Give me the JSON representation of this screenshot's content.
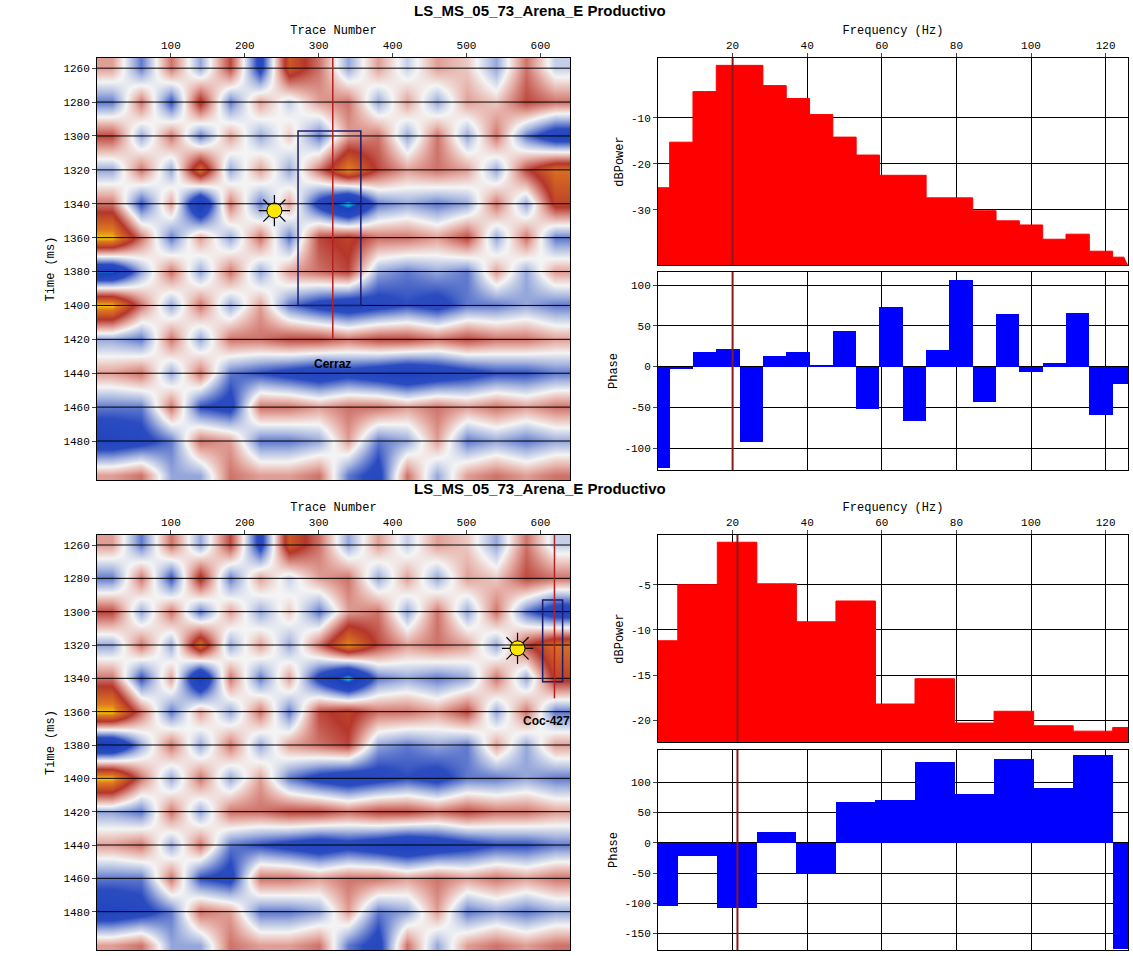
{
  "chart_data": {
    "type": "composite",
    "section_amplitude": {
      "x": [
        20,
        60,
        100,
        140,
        180,
        220,
        260,
        300,
        340,
        380,
        420,
        460,
        500,
        540,
        580,
        620
      ],
      "y": [
        1260,
        1280,
        1300,
        1320,
        1340,
        1360,
        1380,
        1400,
        1420,
        1440,
        1460,
        1480,
        1500
      ],
      "z": [
        [
          0.2,
          -0.3,
          0.3,
          -0.2,
          0.4,
          -0.5,
          0.6,
          0.3,
          -0.2,
          0.2,
          -0.1,
          0.2,
          0.1,
          -0.2,
          0.3,
          -0.1
        ],
        [
          -0.3,
          0.3,
          -0.4,
          0.5,
          -0.3,
          0.2,
          -0.1,
          0.2,
          0.3,
          -0.2,
          0.2,
          -0.2,
          0.2,
          0.1,
          0.4,
          0.3
        ],
        [
          0.4,
          -0.2,
          0.3,
          -0.3,
          0.2,
          -0.2,
          0.1,
          -0.3,
          0.2,
          0.3,
          -0.2,
          0.3,
          -0.2,
          0.3,
          -0.3,
          -0.6
        ],
        [
          -0.2,
          0.3,
          -0.2,
          0.7,
          -0.2,
          0.2,
          -0.2,
          0.3,
          0.8,
          0.4,
          0.2,
          0.3,
          0.2,
          -0.2,
          0.4,
          0.7
        ],
        [
          0.3,
          -0.4,
          0.2,
          -0.8,
          0.3,
          -0.3,
          0.2,
          -0.5,
          -0.95,
          -0.3,
          -0.2,
          -0.3,
          -0.2,
          0.3,
          -0.2,
          0.5
        ],
        [
          0.9,
          0.3,
          -0.3,
          0.2,
          -0.2,
          0.3,
          -0.3,
          0.4,
          0.5,
          0.3,
          0.3,
          0.2,
          0.4,
          -0.2,
          0.3,
          -0.3
        ],
        [
          -0.8,
          -0.2,
          0.3,
          -0.2,
          0.3,
          -0.2,
          0.2,
          0.3,
          0.4,
          -0.2,
          -0.3,
          -0.2,
          -0.3,
          0.2,
          -0.2,
          0.2
        ],
        [
          0.9,
          0.3,
          -0.2,
          0.3,
          -0.2,
          0.2,
          -0.3,
          -0.5,
          -0.6,
          -0.5,
          -0.4,
          -0.5,
          -0.3,
          -0.3,
          -0.2,
          -0.3
        ],
        [
          -0.2,
          -0.3,
          0.3,
          -0.2,
          0.3,
          0.3,
          0.4,
          0.4,
          0.3,
          0.4,
          0.4,
          0.3,
          0.4,
          0.3,
          0.3,
          0.2
        ],
        [
          0.2,
          0.3,
          -0.2,
          0.3,
          -0.3,
          -0.4,
          -0.5,
          -0.6,
          -0.5,
          -0.6,
          -0.7,
          -0.6,
          -0.5,
          -0.4,
          -0.4,
          -0.3
        ],
        [
          -0.3,
          -0.3,
          0.3,
          -0.4,
          -0.5,
          0.3,
          0.3,
          0.2,
          0.3,
          0.3,
          0.2,
          0.3,
          0.2,
          0.3,
          0.2,
          0.3
        ],
        [
          -0.6,
          -0.5,
          -0.3,
          0.3,
          0.2,
          -0.3,
          -0.3,
          -0.2,
          0.2,
          -0.3,
          -0.2,
          0.2,
          -0.3,
          -0.2,
          -0.3,
          -0.2
        ],
        [
          0.2,
          0.3,
          -0.2,
          -0.2,
          0.3,
          0.2,
          0.2,
          0.3,
          -0.3,
          -0.5,
          0.3,
          -0.2,
          0.2,
          0.3,
          0.2,
          0.3
        ]
      ],
      "zlim": [
        -1,
        1
      ]
    },
    "panels": [
      {
        "title": "LS_MS_05_73_Arena_E Productivo",
        "section": {
          "type": "heatmap",
          "x_label": "Trace Number",
          "y_label": "Time (ms)",
          "xlim": [
            0,
            640
          ],
          "ylim": [
            1503,
            1254
          ],
          "xticks": [
            100,
            200,
            300,
            400,
            500,
            600
          ],
          "yticks": [
            1260,
            1280,
            1300,
            1320,
            1340,
            1360,
            1380,
            1400,
            1420,
            1440,
            1460,
            1480
          ],
          "grid": true,
          "well": {
            "label": "Cerraz",
            "trace": 319,
            "time": [
              1254,
              1420
            ],
            "label_trace": 319,
            "label_time": 1429,
            "color": "#b22222"
          },
          "box": {
            "trace": [
              272,
              357
            ],
            "time": [
              1297,
              1400
            ],
            "color": "#1c1c6b"
          },
          "sun": {
            "trace": 240,
            "time": 1344,
            "marker": "sun",
            "color": "#ffe600"
          }
        },
        "power": {
          "type": "bar",
          "x_label": "Frequency (Hz)",
          "y_label": "dBPower",
          "x": [
            0,
            6.25,
            12.5,
            18.75,
            25,
            31.25,
            37.5,
            43.75,
            50,
            56.25,
            62.5,
            68.75,
            75,
            81.25,
            87.5,
            93.75,
            100,
            106.25,
            112.5,
            118.75,
            125
          ],
          "values": [
            -25.2,
            -15.3,
            -4.3,
            1.4,
            1.4,
            -3,
            -5.8,
            -9.3,
            -14.2,
            -18.1,
            -22.5,
            -22.5,
            -27.4,
            -27.4,
            -30.2,
            -32.4,
            -33.3,
            -36.4,
            -35.3,
            -39,
            -40.3
          ],
          "color": "#ff0000",
          "xlim": [
            0,
            126
          ],
          "ylim": [
            -42,
            3
          ],
          "xticks": [
            20,
            40,
            60,
            80,
            100,
            120
          ],
          "yticks": [
            -10,
            -20,
            -30
          ],
          "grid": true,
          "cursor": 20,
          "cursor_color": "#8b1a1a"
        },
        "phase": {
          "type": "bar",
          "y_label": "Phase",
          "x": [
            0,
            6.25,
            12.5,
            18.75,
            25,
            31.25,
            37.5,
            43.75,
            50,
            56.25,
            62.5,
            68.75,
            75,
            81.25,
            87.5,
            93.75,
            100,
            106.25,
            112.5,
            118.75,
            125
          ],
          "values": [
            -125,
            -3,
            18,
            21,
            -93,
            13,
            18,
            2,
            43,
            -52,
            73,
            -67,
            20,
            106,
            -43,
            64,
            -7,
            4,
            66,
            -60,
            -22
          ],
          "color": "#0000ff",
          "xlim": [
            0,
            126
          ],
          "ylim": [
            -127,
            116
          ],
          "xticks": [
            20,
            40,
            60,
            80,
            100,
            120
          ],
          "yticks": [
            -100,
            -50,
            0,
            50,
            100
          ],
          "grid": true,
          "tick_labels": "y",
          "cursor": 20,
          "cursor_color": "#8b1a1a"
        }
      },
      {
        "title": "LS_MS_05_73_Arena_E Productivo",
        "section": {
          "type": "heatmap",
          "x_label": "Trace Number",
          "y_label": "Time (ms)",
          "xlim": [
            0,
            640
          ],
          "ylim": [
            1503,
            1254
          ],
          "xticks": [
            100,
            200,
            300,
            400,
            500,
            600
          ],
          "yticks": [
            1260,
            1280,
            1300,
            1320,
            1340,
            1360,
            1380,
            1400,
            1420,
            1440,
            1460,
            1480
          ],
          "grid": true,
          "well": {
            "label": "Coc-427",
            "trace": 619,
            "time": [
              1254,
              1352
            ],
            "label_trace": 608,
            "label_time": 1360,
            "color": "#b22222"
          },
          "box": {
            "trace": [
              603,
              630
            ],
            "time": [
              1293,
              1342
            ],
            "color": "#1c1c6b"
          },
          "sun": {
            "trace": 569,
            "time": 1322,
            "marker": "sun",
            "color": "#ffe600"
          }
        },
        "power": {
          "type": "bar",
          "x_label": "Frequency (Hz)",
          "y_label": "dBPower",
          "x": [
            0,
            10.6,
            21.2,
            31.8,
            42.4,
            53,
            63.6,
            74.2,
            84.8,
            95.4,
            106,
            116.6,
            127.2
          ],
          "values": [
            -11.2,
            -5,
            -0.3,
            -4.9,
            -9.1,
            -6.8,
            -18.2,
            -15.4,
            -20.3,
            -19,
            -20.6,
            -21.2,
            -20.8
          ],
          "color": "#ff0000",
          "xlim": [
            0,
            126
          ],
          "ylim": [
            -22.4,
            0.5
          ],
          "xticks": [
            20,
            40,
            60,
            80,
            100,
            120
          ],
          "yticks": [
            -5,
            -10,
            -15,
            -20
          ],
          "grid": true,
          "cursor": 21.3,
          "cursor_color": "#8b1a1a"
        },
        "phase": {
          "type": "bar",
          "y_label": "Phase",
          "x": [
            0,
            10.6,
            21.2,
            31.8,
            42.4,
            53,
            63.6,
            74.2,
            84.8,
            95.4,
            106,
            116.6,
            127.2
          ],
          "values": [
            -105,
            -22,
            -107,
            18,
            -52,
            68,
            70,
            133,
            80,
            138,
            90,
            145,
            -175
          ],
          "color": "#0000ff",
          "xlim": [
            0,
            126
          ],
          "ylim": [
            -177,
            153
          ],
          "xticks": [
            20,
            40,
            60,
            80,
            100,
            120
          ],
          "yticks": [
            -150,
            -100,
            -50,
            0,
            50,
            100
          ],
          "grid": true,
          "tick_labels": "y",
          "cursor": 21.3,
          "cursor_color": "#8b1a1a"
        }
      }
    ]
  }
}
